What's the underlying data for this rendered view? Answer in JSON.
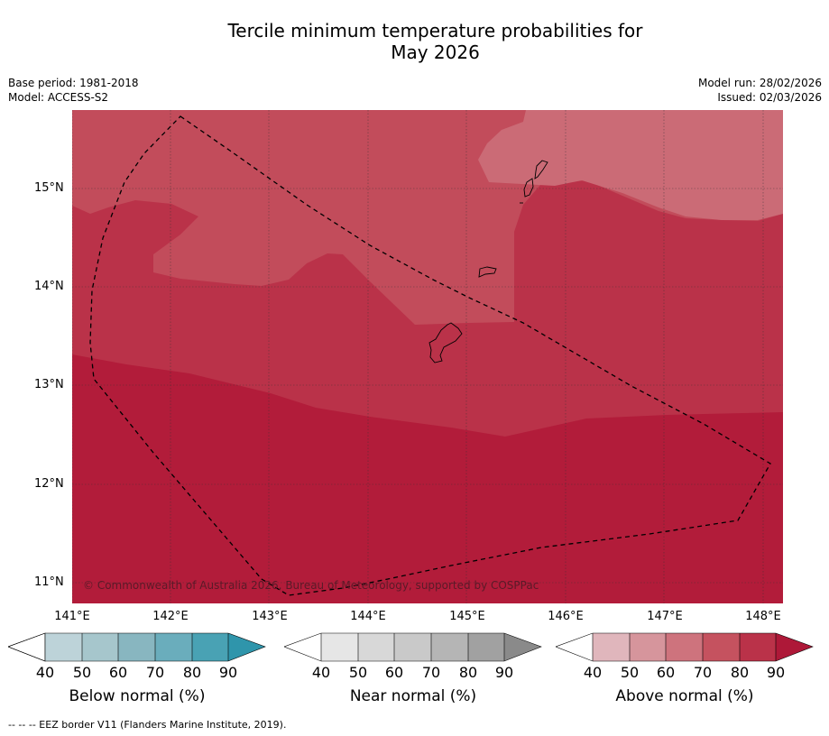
{
  "title_line1": "Tercile minimum temperature probabilities for",
  "title_line2": "May 2026",
  "meta": {
    "base_period": "Base period: 1981-2018",
    "model": "Model: ACCESS-S2",
    "model_run": "Model run: 28/02/2026",
    "issued": "Issued: 02/03/2026"
  },
  "map": {
    "lat_labels": [
      "15°N",
      "14°N",
      "13°N",
      "12°N",
      "11°N"
    ],
    "lon_labels": [
      "141°E",
      "142°E",
      "143°E",
      "144°E",
      "145°E",
      "146°E",
      "147°E",
      "148°E"
    ],
    "copyright": "© Commonwealth of Australia 2026, Bureau of Meteorology, supported by COSPPac",
    "colors": {
      "above_60_70": "#cb6b76",
      "above_70_80": "#c24c5b",
      "above_80_90": "#ba3249",
      "above_90": "#b21c3a"
    }
  },
  "colorbars": [
    {
      "label": "Below normal (%)",
      "ticks": [
        "40",
        "50",
        "60",
        "70",
        "80",
        "90"
      ],
      "colors": [
        "#ffffff",
        "#bdd3d9",
        "#a6c6cc",
        "#88b6c0",
        "#6aadbc",
        "#49a2b4",
        "#2f95ab"
      ]
    },
    {
      "label": "Near normal (%)",
      "ticks": [
        "40",
        "50",
        "60",
        "70",
        "80",
        "90"
      ],
      "colors": [
        "#ffffff",
        "#e6e6e6",
        "#d8d8d8",
        "#c9c9c9",
        "#b5b5b5",
        "#a1a1a1",
        "#8a8a8a"
      ]
    },
    {
      "label": "Above normal (%)",
      "ticks": [
        "40",
        "50",
        "60",
        "70",
        "80",
        "90"
      ],
      "colors": [
        "#ffffff",
        "#e0b6bc",
        "#d6959c",
        "#ce737d",
        "#c5525f",
        "#ba3249",
        "#ae1838"
      ]
    }
  ],
  "footnote": "--  --  -- EEZ border V11 (Flanders Marine Institute, 2019)."
}
